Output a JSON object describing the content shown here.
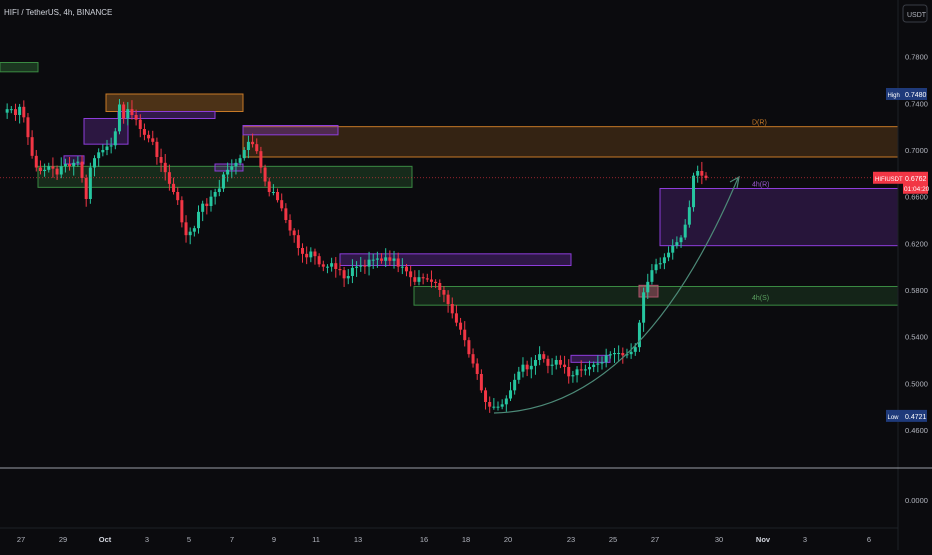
{
  "header": {
    "symbol_text": "HIFI / TetherUS, 4h, BINANCE",
    "currency": "USDT"
  },
  "price_axis": {
    "ticks": [
      "0.7800",
      "0.7400",
      "0.7000",
      "0.6600",
      "0.6200",
      "0.5800",
      "0.5400",
      "0.5000",
      "0.4600"
    ],
    "tick_values": [
      0.78,
      0.74,
      0.7,
      0.66,
      0.62,
      0.58,
      0.54,
      0.5,
      0.46
    ]
  },
  "sub_pane": {
    "value_label": "0.0000"
  },
  "badges": {
    "high": {
      "label": "High",
      "value": "0.7480",
      "price": 0.748
    },
    "low": {
      "label": "Low",
      "value": "0.4721",
      "price": 0.4721
    },
    "current": {
      "symbol": "HIFIUSDT",
      "price_text": "0.6762",
      "countdown": "01:04:20",
      "price": 0.6762
    }
  },
  "colors": {
    "bull": "#26c6a0",
    "bear": "#f23645",
    "background": "#0b0b0e",
    "daily_zone": "#c77a27",
    "purple_zone": "#8e3ddb",
    "green_zone": "#3a8a42",
    "pink_zone": "#b0546c",
    "badge_blue": "#1f3a7a",
    "badge_red": "#f23645",
    "arrow": "#4d8a78"
  },
  "zone_labels": {
    "daily_resistance": "D(R)",
    "h4_resistance": "4h(R)",
    "h4_support": "4h(S)"
  },
  "time_axis": {
    "labels": [
      "27",
      "29",
      "Oct",
      "3",
      "5",
      "7",
      "9",
      "11",
      "13",
      "16",
      "18",
      "20",
      "23",
      "25",
      "27",
      "30",
      "Nov",
      "3",
      "6"
    ],
    "bold": [
      "Oct",
      "Nov"
    ]
  },
  "chart_data": {
    "type": "candlestick",
    "title": "HIFI / TetherUS, 4h, BINANCE",
    "y_unit": "USDT",
    "ylim": [
      0.445,
      0.795
    ],
    "grid": false,
    "zones": [
      {
        "name": "D(R)",
        "top": 0.72,
        "bottom": 0.694
      },
      {
        "name": "4h(R)",
        "top": 0.667,
        "bottom": 0.618
      },
      {
        "name": "4h(S)",
        "top": 0.583,
        "bottom": 0.567
      }
    ],
    "price_path": [
      0.732,
      0.735,
      0.735,
      0.73,
      0.737,
      0.728,
      0.711,
      0.695,
      0.685,
      0.682,
      0.683,
      0.686,
      0.684,
      0.679,
      0.686,
      0.688,
      0.686,
      0.689,
      0.69,
      0.676,
      0.658,
      0.685,
      0.693,
      0.698,
      0.7,
      0.703,
      0.704,
      0.716,
      0.739,
      0.727,
      0.735,
      0.73,
      0.726,
      0.718,
      0.713,
      0.71,
      0.707,
      0.694,
      0.689,
      0.681,
      0.671,
      0.664,
      0.657,
      0.638,
      0.627,
      0.63,
      0.633,
      0.647,
      0.654,
      0.652,
      0.66,
      0.664,
      0.667,
      0.679,
      0.683,
      0.686,
      0.689,
      0.693,
      0.7,
      0.707,
      0.705,
      0.699,
      0.685,
      0.673,
      0.664,
      0.664,
      0.657,
      0.65,
      0.64,
      0.631,
      0.627,
      0.616,
      0.611,
      0.608,
      0.613,
      0.609,
      0.602,
      0.6,
      0.6,
      0.603,
      0.598,
      0.597,
      0.59,
      0.592,
      0.599,
      0.6,
      0.601,
      0.6,
      0.606,
      0.606,
      0.607,
      0.605,
      0.608,
      0.605,
      0.607,
      0.6,
      0.6,
      0.596,
      0.591,
      0.587,
      0.591,
      0.59,
      0.589,
      0.587,
      0.586,
      0.58,
      0.576,
      0.568,
      0.56,
      0.552,
      0.546,
      0.537,
      0.525,
      0.517,
      0.508,
      0.494,
      0.484,
      0.48,
      0.48,
      0.48,
      0.482,
      0.487,
      0.494,
      0.503,
      0.51,
      0.516,
      0.512,
      0.515,
      0.52,
      0.525,
      0.521,
      0.515,
      0.516,
      0.52,
      0.516,
      0.514,
      0.506,
      0.507,
      0.512,
      0.511,
      0.512,
      0.514,
      0.516,
      0.517,
      0.518,
      0.524,
      0.525,
      0.526,
      0.526,
      0.524,
      0.525,
      0.527,
      0.531,
      0.552,
      0.578,
      0.587,
      0.597,
      0.602,
      0.603,
      0.608,
      0.612,
      0.618,
      0.621,
      0.625,
      0.636,
      0.651,
      0.678,
      0.682,
      0.678,
      0.676
    ]
  }
}
